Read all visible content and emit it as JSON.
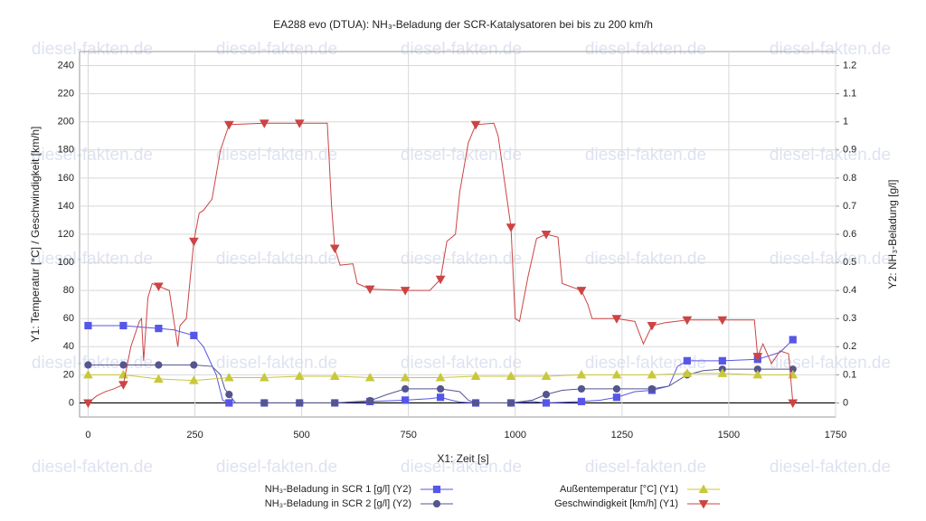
{
  "chart_data": {
    "type": "line",
    "title": "EA288 evo (DTUA): NH₃-Beladung der SCR-Katalysatoren bei bis zu 200 km/h",
    "watermark": "diesel-fakten.de",
    "xlabel": "X1: Zeit [s]",
    "ylabel": "Y1: Temperatur [°C] / Geschwindigkeit [km/h]",
    "y2label": "Y2: NH₃-Beladung [g/l]",
    "xlim": [
      -20,
      1750
    ],
    "xticks": [
      0,
      250,
      500,
      750,
      1000,
      1250,
      1500,
      1750
    ],
    "ylim": [
      -10,
      250
    ],
    "yticks": [
      0,
      20,
      40,
      60,
      80,
      100,
      120,
      140,
      160,
      180,
      200,
      220,
      240
    ],
    "y2lim": [
      -0.05,
      1.25
    ],
    "y2ticks": [
      0,
      0.1,
      0.2,
      0.3,
      0.4,
      0.5,
      0.6,
      0.7,
      0.8,
      0.9,
      1,
      1.1,
      1.2
    ],
    "grid": true,
    "legend": "bottom",
    "marker_interval": 82.5,
    "series": [
      {
        "name": "NH₃-Beladung in SCR 1 [g/l] (Y2)",
        "color": "#5656e8",
        "marker": "square",
        "axis": "y2",
        "x": [
          0,
          82.5,
          120,
          165,
          200,
          247.5,
          270,
          300,
          315,
          330,
          412.5,
          495,
          577.5,
          660,
          742.5,
          800,
          825,
          850,
          870,
          907.5,
          990,
          1040,
          1072.5,
          1155,
          1200,
          1237.5,
          1280,
          1320,
          1360,
          1380,
          1402.5,
          1485,
          1567.5,
          1620,
          1650
        ],
        "values": [
          0.275,
          0.275,
          0.27,
          0.265,
          0.26,
          0.24,
          0.2,
          0.1,
          0.01,
          0,
          0,
          0,
          0,
          0.005,
          0.01,
          0.015,
          0.02,
          0.01,
          0.003,
          0,
          0,
          0.005,
          0,
          0.005,
          0.01,
          0.02,
          0.04,
          0.045,
          0.06,
          0.13,
          0.15,
          0.15,
          0.155,
          0.18,
          0.225
        ]
      },
      {
        "name": "NH₃-Beladung in SCR 2 [g/l] (Y2)",
        "color": "#55558f",
        "marker": "circle",
        "axis": "y2",
        "x": [
          0,
          82.5,
          165,
          247.5,
          290,
          310,
          320,
          330,
          345,
          412.5,
          495,
          577.5,
          660,
          700,
          742.5,
          825,
          870,
          890,
          907.5,
          990,
          1040,
          1072.5,
          1110,
          1155,
          1237.5,
          1320,
          1360,
          1402.5,
          1440,
          1485,
          1567.5,
          1650
        ],
        "values": [
          0.135,
          0.135,
          0.135,
          0.135,
          0.13,
          0.1,
          0.05,
          0.03,
          0,
          0,
          0,
          0,
          0.008,
          0.03,
          0.05,
          0.05,
          0.04,
          0.01,
          0,
          0,
          0.01,
          0.03,
          0.045,
          0.05,
          0.05,
          0.05,
          0.06,
          0.1,
          0.115,
          0.12,
          0.12,
          0.12
        ]
      },
      {
        "name": "Außentemperatur [°C] (Y1)",
        "color": "#c8c83a",
        "marker": "triangle-up",
        "x": [
          0,
          82.5,
          165,
          247.5,
          330,
          412.5,
          495,
          577.5,
          660,
          742.5,
          825,
          907.5,
          990,
          1072.5,
          1155,
          1237.5,
          1320,
          1402.5,
          1485,
          1567.5,
          1650
        ],
        "values": [
          20,
          20,
          17,
          16,
          18,
          18,
          19,
          19,
          18,
          18,
          18,
          19,
          19,
          19,
          20,
          20,
          20,
          21,
          21,
          20,
          20
        ]
      },
      {
        "name": "Geschwindigkeit [km/h] (Y1)",
        "color": "#cc4444",
        "marker": "triangle-down",
        "x": [
          0,
          20,
          40,
          60,
          82.5,
          100,
          120,
          125,
          130,
          140,
          150,
          165,
          190,
          210,
          215,
          230,
          247.5,
          260,
          270,
          290,
          310,
          330,
          412.5,
          495,
          560,
          570,
          577.5,
          590,
          620,
          630,
          660,
          742.5,
          800,
          825,
          840,
          860,
          870,
          890,
          907.5,
          950,
          960,
          990,
          1000,
          1010,
          1030,
          1050,
          1072.5,
          1100,
          1110,
          1155,
          1170,
          1180,
          1237.5,
          1280,
          1300,
          1320,
          1350,
          1402.5,
          1485,
          1560,
          1567.5,
          1580,
          1600,
          1620,
          1640,
          1650
        ],
        "values": [
          0,
          5,
          8,
          10,
          13,
          40,
          58,
          60,
          30,
          75,
          85,
          83,
          80,
          40,
          55,
          60,
          115,
          135,
          137,
          145,
          180,
          198,
          199,
          199,
          199,
          140,
          110,
          98,
          99,
          85,
          81,
          80,
          80,
          88,
          115,
          120,
          150,
          185,
          198,
          199,
          190,
          125,
          60,
          58,
          90,
          117,
          120,
          118,
          85,
          80,
          70,
          60,
          60,
          58,
          42,
          55,
          57,
          59,
          59,
          59,
          33,
          42,
          28,
          37,
          35,
          0
        ]
      }
    ]
  }
}
